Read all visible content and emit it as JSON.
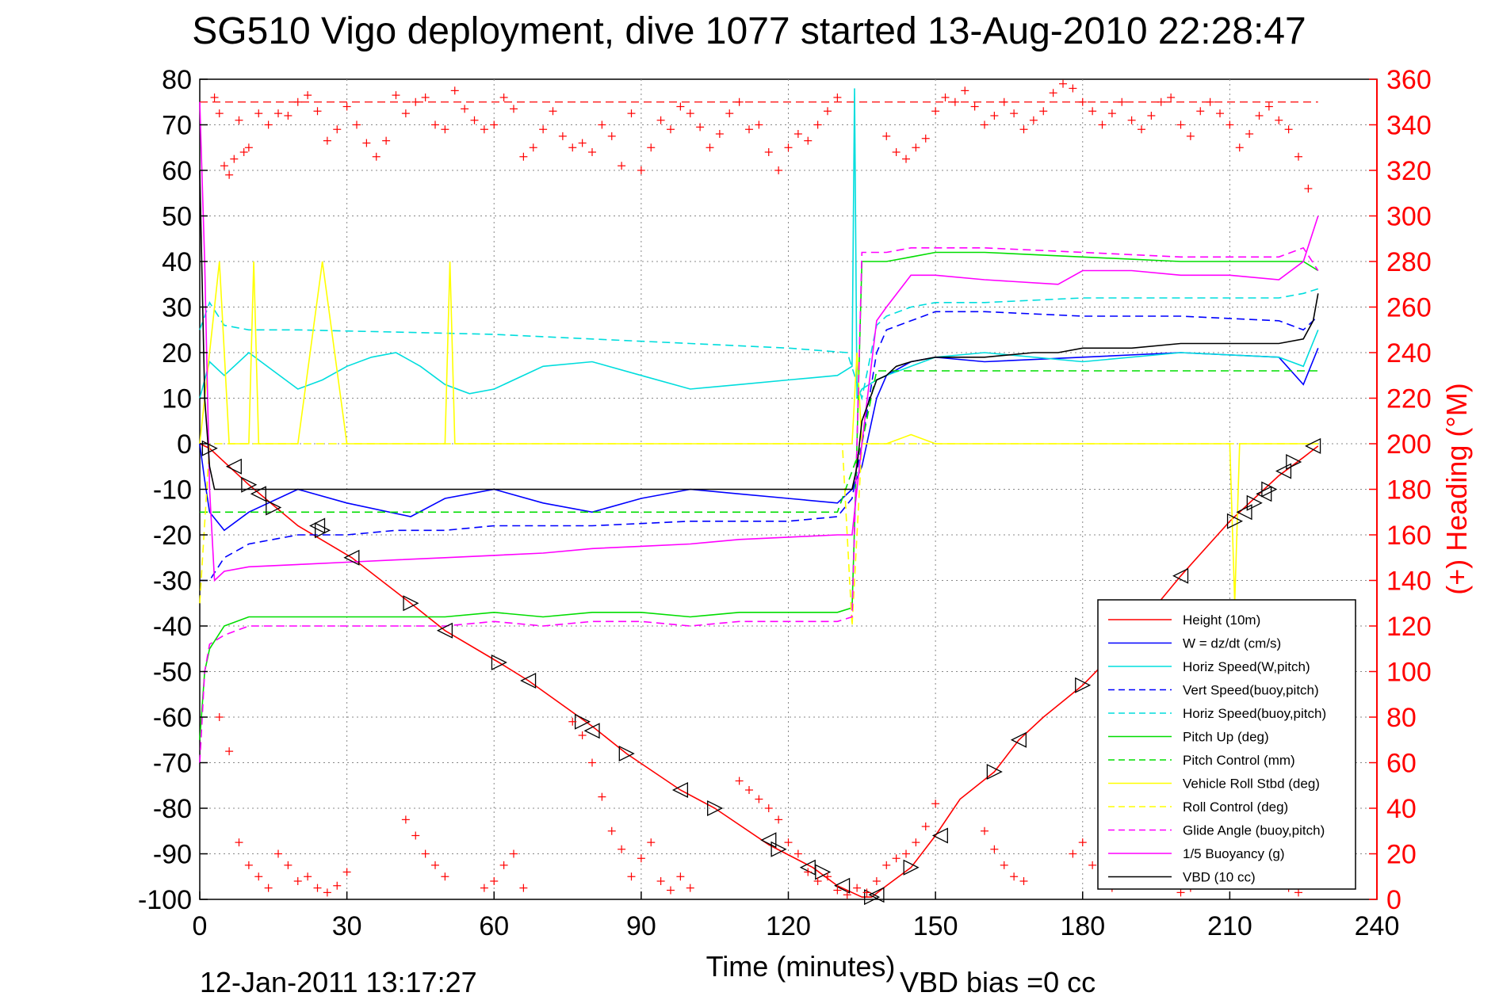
{
  "chart_data": {
    "type": "line",
    "title": "SG510 Vigo deployment, dive 1077 started 13-Aug-2010 22:28:47",
    "xlabel": "Time (minutes)",
    "ylabel_right": "(+) Heading (°M)",
    "footer_date": "12-Jan-2011 13:17:27",
    "footer_vbd": "VBD bias =0 cc",
    "xlim": [
      0,
      240
    ],
    "ylim": [
      -100,
      80
    ],
    "ylim_right": [
      0,
      360
    ],
    "grid": true,
    "legend_position": "bottom-right",
    "x_ticks": [
      "0",
      "30",
      "60",
      "90",
      "120",
      "150",
      "180",
      "210",
      "240"
    ],
    "y_ticks": [
      "80",
      "70",
      "60",
      "50",
      "40",
      "30",
      "20",
      "10",
      "0",
      "-10",
      "-20",
      "-30",
      "-40",
      "-50",
      "-60",
      "-70",
      "-80",
      "-90",
      "-100"
    ],
    "y_ticks_right": [
      "360",
      "340",
      "320",
      "300",
      "280",
      "260",
      "240",
      "220",
      "200",
      "180",
      "160",
      "140",
      "120",
      "100",
      "80",
      "60",
      "40",
      "20",
      "0"
    ],
    "series": [
      {
        "name": "Height (10m)",
        "color": "#ff0000",
        "style": "solid",
        "x": [
          0,
          2,
          10,
          20,
          31,
          43,
          50,
          61,
          67,
          80,
          87,
          98,
          105,
          116,
          125,
          130,
          135,
          137,
          140,
          145,
          150,
          155,
          162,
          167,
          172,
          180,
          190,
          200,
          210,
          215,
          220,
          225,
          228
        ],
        "y": [
          0,
          -1,
          -9,
          -18,
          -25,
          -35,
          -41,
          -48,
          -52,
          -62,
          -68,
          -76,
          -80,
          -88,
          -93,
          -97,
          -99.5,
          -99.5,
          -97,
          -93,
          -86,
          -78,
          -72,
          -65,
          -60,
          -53,
          -42,
          -29,
          -17,
          -12,
          -7,
          -3,
          -0.5
        ]
      },
      {
        "name": "W = dz/dt (cm/s)",
        "color": "#0000ff",
        "style": "solid",
        "x": [
          0,
          1,
          2,
          5,
          10,
          20,
          30,
          43,
          50,
          60,
          70,
          80,
          90,
          100,
          110,
          120,
          130,
          133,
          135,
          138,
          140,
          145,
          150,
          160,
          180,
          200,
          220,
          225,
          228
        ],
        "y": [
          0,
          -8,
          -15,
          -19,
          -15,
          -10,
          -13,
          -16,
          -12,
          -10,
          -13,
          -15,
          -12,
          -10,
          -11,
          -12,
          -13,
          -10,
          -5,
          10,
          15,
          18,
          19,
          18,
          19,
          20,
          19,
          13,
          21
        ]
      },
      {
        "name": "Horiz Speed(W,pitch)",
        "color": "#00dddd",
        "style": "solid",
        "x": [
          0,
          2,
          5,
          10,
          15,
          20,
          25,
          30,
          35,
          40,
          45,
          50,
          55,
          60,
          70,
          80,
          90,
          100,
          110,
          120,
          130,
          133,
          133.5,
          134,
          135,
          138,
          140,
          145,
          150,
          160,
          180,
          200,
          220,
          225,
          228
        ],
        "y": [
          10,
          18,
          15,
          20,
          16,
          12,
          14,
          17,
          19,
          20,
          17,
          13,
          11,
          12,
          17,
          18,
          15,
          12,
          13,
          14,
          15,
          17,
          78,
          10,
          12,
          14,
          15,
          17,
          19,
          20,
          18,
          20,
          19,
          17,
          25
        ]
      },
      {
        "name": "Vert Speed(buoy,pitch)",
        "color": "#0000ff",
        "style": "dashed",
        "x": [
          0,
          2,
          5,
          10,
          20,
          30,
          40,
          50,
          60,
          80,
          100,
          120,
          130,
          133,
          135,
          138,
          140,
          145,
          150,
          160,
          180,
          200,
          220,
          225,
          228
        ],
        "y": [
          -30,
          -30,
          -25,
          -22,
          -20,
          -20,
          -19,
          -19,
          -18,
          -18,
          -17,
          -17,
          -16,
          -12,
          0,
          20,
          25,
          27,
          29,
          29,
          28,
          28,
          27,
          25,
          28
        ]
      },
      {
        "name": "Horiz Speed(buoy,pitch)",
        "color": "#00dddd",
        "style": "dashed",
        "x": [
          0,
          2,
          5,
          10,
          20,
          40,
          60,
          80,
          100,
          120,
          132,
          135,
          138,
          140,
          145,
          150,
          160,
          180,
          200,
          220,
          225,
          228
        ],
        "y": [
          25,
          31,
          26,
          25,
          25,
          24.5,
          24,
          23,
          22,
          21,
          20,
          10,
          26,
          28,
          30,
          31,
          31,
          32,
          32,
          32,
          33,
          34
        ]
      },
      {
        "name": "Pitch Up (deg)",
        "color": "#00dd00",
        "style": "solid",
        "x": [
          0,
          1,
          2,
          5,
          10,
          20,
          30,
          40,
          50,
          60,
          70,
          80,
          90,
          100,
          110,
          120,
          130,
          133,
          134,
          135,
          136,
          140,
          145,
          150,
          160,
          180,
          200,
          220,
          225,
          228
        ],
        "y": [
          -65,
          -50,
          -45,
          -40,
          -38,
          -38,
          -38,
          -38,
          -38,
          -37,
          -38,
          -37,
          -37,
          -38,
          -37,
          -37,
          -37,
          -36,
          0,
          40,
          40,
          40,
          41,
          42,
          42,
          41,
          40,
          40,
          40,
          38
        ]
      },
      {
        "name": "Pitch Control (mm)",
        "color": "#00dd00",
        "style": "dashed",
        "x": [
          0,
          1,
          5,
          10,
          30,
          60,
          90,
          120,
          130,
          135,
          138,
          140,
          150,
          180,
          210,
          220,
          228
        ],
        "y": [
          -15,
          -15,
          -15,
          -15,
          -15,
          -15,
          -15,
          -15,
          -15,
          0,
          16,
          16,
          16,
          16,
          16,
          16,
          16
        ]
      },
      {
        "name": "Vehicle Roll Stbd (deg)",
        "color": "#ffff00",
        "style": "solid",
        "x": [
          0,
          2,
          4,
          6,
          10,
          11,
          12,
          15,
          20,
          25,
          30,
          40,
          50,
          51,
          52,
          60,
          70,
          80,
          90,
          100,
          110,
          120,
          130,
          133,
          134,
          135,
          140,
          145,
          150,
          160,
          180,
          200,
          210,
          211,
          212,
          220,
          228
        ],
        "y": [
          0,
          20,
          40,
          0,
          0,
          40,
          0,
          0,
          0,
          40,
          0,
          0,
          0,
          40,
          0,
          0,
          0,
          0,
          0,
          0,
          0,
          0,
          0,
          0,
          20,
          0,
          0,
          2,
          0,
          0,
          0,
          0,
          0,
          -35,
          0,
          0,
          0
        ]
      },
      {
        "name": "Roll Control (deg)",
        "color": "#ffff00",
        "style": "dashed",
        "x": [
          0,
          2,
          5,
          30,
          60,
          90,
          120,
          131,
          133,
          135,
          140,
          150,
          180,
          210,
          220,
          228
        ],
        "y": [
          -35,
          0,
          0,
          0,
          0,
          0,
          0,
          0,
          -40,
          0,
          0,
          0,
          0,
          0,
          0,
          0
        ]
      },
      {
        "name": "Glide Angle (buoy,pitch)",
        "color": "#ff00ff",
        "style": "dashed",
        "x": [
          0,
          1,
          2,
          5,
          10,
          20,
          30,
          40,
          50,
          60,
          70,
          80,
          90,
          100,
          110,
          120,
          130,
          133,
          134,
          135,
          136,
          140,
          145,
          150,
          160,
          180,
          200,
          220,
          225,
          228
        ],
        "y": [
          -70,
          -50,
          -44,
          -42,
          -40,
          -40,
          -40,
          -40,
          -40,
          -39,
          -40,
          -39,
          -39,
          -40,
          -39,
          -39,
          -39,
          -38,
          0,
          42,
          42,
          42,
          43,
          43,
          43,
          42,
          41,
          41,
          43,
          38
        ]
      },
      {
        "name": "1/5 Buoyancy (g)",
        "color": "#ff00ff",
        "style": "solid",
        "x": [
          0,
          1,
          2,
          3,
          5,
          10,
          20,
          30,
          40,
          50,
          60,
          70,
          80,
          90,
          100,
          110,
          120,
          130,
          133,
          135,
          138,
          140,
          145,
          150,
          160,
          175,
          180,
          190,
          200,
          210,
          220,
          225,
          228
        ],
        "y": [
          75,
          40,
          -10,
          -30,
          -28,
          -27,
          -26.5,
          -26,
          -25.5,
          -25,
          -24.5,
          -24,
          -23,
          -22.5,
          -22,
          -21,
          -20.5,
          -20,
          -20,
          0,
          27,
          30,
          37,
          37,
          36,
          35,
          38,
          38,
          37,
          37,
          36,
          40,
          50
        ]
      },
      {
        "name": "VBD (10 cc)",
        "color": "#000000",
        "style": "solid",
        "x": [
          0,
          1,
          2,
          3,
          5,
          30,
          60,
          90,
          120,
          133,
          134,
          135,
          138,
          140,
          142,
          145,
          150,
          160,
          170,
          175,
          180,
          190,
          200,
          210,
          220,
          225,
          227,
          228
        ],
        "y": [
          60,
          10,
          -5,
          -10,
          -10,
          -10,
          -10,
          -10,
          -10,
          -10,
          -5,
          5,
          14,
          15,
          17,
          18,
          19,
          19,
          20,
          20,
          21,
          21,
          22,
          22,
          22,
          23,
          27,
          33
        ]
      }
    ],
    "markers": {
      "description_none": "",
      "black_triangles_x": [
        2,
        7,
        10,
        12,
        15,
        24,
        25,
        31,
        43,
        50,
        61,
        67,
        78,
        80,
        87,
        98,
        105,
        116,
        118,
        124,
        127,
        131,
        137,
        138,
        145,
        151,
        162,
        167,
        180,
        200,
        211,
        213,
        215,
        217,
        218,
        221,
        223,
        227
      ],
      "black_triangles_y": [
        -1,
        -5,
        -9,
        -11,
        -14,
        -18,
        -19,
        -25,
        -35,
        -41,
        -48,
        -52,
        -61,
        -63,
        -68,
        -76,
        -80,
        -87,
        -89,
        -93,
        -94,
        -97,
        -99.5,
        -99,
        -93,
        -86,
        -72,
        -65,
        -53,
        -29,
        -17,
        -15,
        -13,
        -11,
        -10,
        -6,
        -4,
        -0.5
      ]
    },
    "heading_points": {
      "name": "(+) Heading",
      "color": "#ff0000",
      "x": [
        3,
        4,
        5,
        6,
        7,
        8,
        9,
        10,
        12,
        14,
        16,
        18,
        20,
        22,
        24,
        26,
        28,
        30,
        32,
        34,
        36,
        38,
        40,
        42,
        44,
        46,
        48,
        50,
        52,
        54,
        56,
        58,
        60,
        62,
        64,
        66,
        68,
        70,
        72,
        74,
        76,
        78,
        80,
        82,
        84,
        86,
        88,
        90,
        92,
        94,
        96,
        98,
        100,
        102,
        104,
        106,
        108,
        110,
        112,
        114,
        116,
        118,
        120,
        122,
        124,
        126,
        128,
        130,
        140,
        142,
        144,
        146,
        148,
        150,
        152,
        154,
        156,
        158,
        160,
        162,
        164,
        166,
        168,
        170,
        172,
        174,
        176,
        178,
        180,
        182,
        184,
        186,
        188,
        190,
        192,
        194,
        196,
        198,
        200,
        202,
        204,
        206,
        208,
        210,
        212,
        214,
        216,
        218,
        220,
        222,
        224,
        226,
        4,
        6,
        8,
        10,
        12,
        14,
        16,
        18,
        20,
        22,
        24,
        26,
        28,
        30,
        42,
        44,
        46,
        48,
        50,
        58,
        60,
        62,
        64,
        66,
        76,
        78,
        80,
        82,
        84,
        86,
        88,
        90,
        92,
        94,
        96,
        98,
        100,
        110,
        112,
        114,
        116,
        118,
        120,
        122,
        124,
        126,
        128,
        130,
        132,
        134,
        136,
        138,
        140,
        142,
        144,
        146,
        148,
        150,
        160,
        162,
        164,
        166,
        168,
        178,
        180,
        182,
        184,
        186,
        198,
        200,
        202,
        204,
        206,
        218,
        220,
        222,
        224,
        226
      ],
      "y": [
        352,
        345,
        322,
        318,
        325,
        342,
        328,
        330,
        345,
        340,
        345,
        344,
        350,
        353,
        346,
        333,
        338,
        348,
        340,
        332,
        326,
        333,
        353,
        345,
        350,
        352,
        340,
        338,
        355,
        347,
        342,
        338,
        340,
        352,
        347,
        326,
        330,
        338,
        346,
        335,
        330,
        332,
        328,
        340,
        335,
        322,
        345,
        320,
        330,
        342,
        338,
        348,
        345,
        339,
        330,
        336,
        345,
        350,
        338,
        340,
        328,
        320,
        330,
        336,
        333,
        340,
        346,
        352,
        335,
        328,
        325,
        330,
        334,
        346,
        352,
        350,
        355,
        348,
        340,
        344,
        350,
        345,
        338,
        342,
        346,
        354,
        358,
        356,
        350,
        346,
        340,
        345,
        350,
        342,
        338,
        344,
        350,
        352,
        340,
        335,
        346,
        350,
        345,
        340,
        330,
        336,
        344,
        348,
        342,
        338,
        326,
        312,
        80,
        65,
        25,
        15,
        10,
        5,
        20,
        15,
        8,
        10,
        5,
        3,
        6,
        12,
        35,
        28,
        20,
        15,
        10,
        5,
        8,
        15,
        20,
        5,
        78,
        72,
        60,
        45,
        30,
        22,
        10,
        18,
        25,
        8,
        4,
        10,
        5,
        52,
        48,
        44,
        40,
        35,
        25,
        20,
        12,
        8,
        10,
        4,
        2,
        5,
        3,
        8,
        15,
        18,
        20,
        25,
        32,
        42,
        30,
        22,
        15,
        10,
        8,
        20,
        25,
        15,
        10,
        5,
        8,
        3,
        5,
        10,
        15,
        18,
        10,
        5,
        3,
        8
      ]
    },
    "reference_line": {
      "color": "#ff0000",
      "style": "dashed",
      "y_right": 350
    }
  }
}
